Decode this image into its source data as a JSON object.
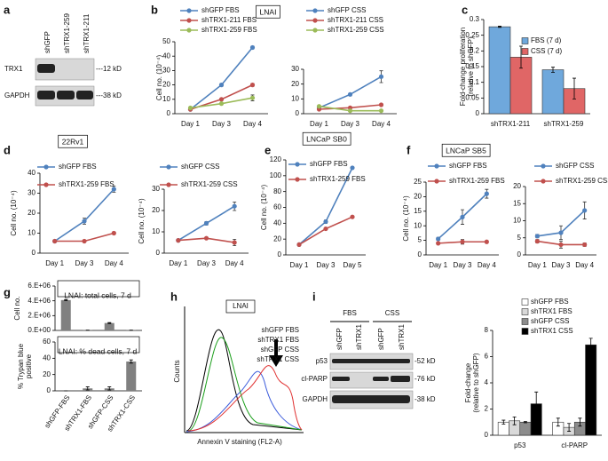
{
  "panel_labels": [
    "a",
    "b",
    "c",
    "d",
    "e",
    "f",
    "g",
    "h",
    "i"
  ],
  "blot_a": {
    "lanes": [
      "shGFP",
      "shTRX1-259",
      "shTRX1-211"
    ],
    "rows": [
      "TRX1",
      "GAPDH"
    ],
    "sizes": [
      "---12 kD",
      "---38 kD"
    ]
  },
  "blot_i": {
    "groups": [
      "FBS",
      "CSS"
    ],
    "lanes": [
      "shGFP",
      "shTRX1",
      "shGFP",
      "shTRX1"
    ],
    "rows": [
      "p53",
      "cl-PARP",
      "GAPDH"
    ],
    "sizes": [
      "-52 kD",
      "-76 kD",
      "-38 kD"
    ]
  },
  "flow_h": {
    "title": "LNAI",
    "ylabel": "Counts",
    "xlabel": "Annexin V staining (FL2-A)",
    "legend": [
      {
        "name": "shGFP FBS",
        "color": "#000000"
      },
      {
        "name": "shTRX1 FBS",
        "color": "#3b5bdb"
      },
      {
        "name": "shGFP CSS",
        "color": "#1a9e1a"
      },
      {
        "name": "shTRX1 CSS",
        "color": "#e03131"
      }
    ]
  },
  "chart_data": [
    {
      "type": "line",
      "title": "LNAI",
      "ylabel": "Cell no. (10⁻⁴)",
      "categories": [
        "Day 1",
        "Day 3",
        "Day 4"
      ],
      "ylim": [
        0,
        50
      ],
      "yticks": [
        0,
        10,
        20,
        30,
        40,
        50
      ],
      "series": [
        {
          "name": "shGFP FBS",
          "color": "#4f81bd",
          "values": [
            3,
            20,
            46
          ],
          "errors": [
            0.5,
            1,
            1
          ]
        },
        {
          "name": "shTRX1-211 FBS",
          "color": "#c0504d",
          "values": [
            3,
            10,
            20
          ],
          "errors": [
            0.5,
            0.8,
            1
          ]
        },
        {
          "name": "shTRX1-259 FBS",
          "color": "#9bbb59",
          "values": [
            4,
            7,
            11
          ],
          "errors": [
            0.5,
            0.8,
            2
          ]
        }
      ]
    },
    {
      "type": "line",
      "categories": [
        "Day 1",
        "Day 3",
        "Day 4"
      ],
      "ylim": [
        0,
        30
      ],
      "yticks": [
        0,
        10,
        20,
        30
      ],
      "series": [
        {
          "name": "shGFP CSS",
          "color": "#4f81bd",
          "values": [
            4,
            13,
            25
          ],
          "errors": [
            0.5,
            0.8,
            4
          ]
        },
        {
          "name": "shTRX1-211 CSS",
          "color": "#c0504d",
          "values": [
            3,
            4,
            6
          ],
          "errors": [
            0.3,
            0.5,
            0.5
          ]
        },
        {
          "name": "shTRX1-259 CSS",
          "color": "#9bbb59",
          "values": [
            5,
            2,
            2
          ],
          "errors": [
            0.3,
            0.3,
            0.3
          ]
        }
      ]
    },
    {
      "type": "bar",
      "ylabel": [
        "Fold-change proliferation",
        "(relative to shGFP)"
      ],
      "categories": [
        "shTRX1-211",
        "shTRX1-259"
      ],
      "ylim": [
        0,
        0.3
      ],
      "yticks": [
        0,
        0.05,
        0.1,
        0.15,
        0.2,
        0.25,
        0.3
      ],
      "series": [
        {
          "name": "FBS (7 d)",
          "color": "#6fa8dc",
          "values": [
            0.277,
            0.14
          ],
          "errors": [
            0.002,
            0.008
          ]
        },
        {
          "name": "CSS (7 d)",
          "color": "#e06666",
          "values": [
            0.18,
            0.08
          ],
          "errors": [
            0.035,
            0.033
          ]
        }
      ]
    },
    {
      "type": "line",
      "title": "22Rv1",
      "ylabel": "Cell no. (10⁻⁴)",
      "categories": [
        "Day 1",
        "Day 3",
        "Day 4"
      ],
      "ylim": [
        0,
        40
      ],
      "yticks": [
        0,
        10,
        20,
        30,
        40
      ],
      "series": [
        {
          "name": "shGFP FBS",
          "color": "#4f81bd",
          "values": [
            6,
            16,
            32
          ],
          "errors": [
            0.5,
            1.5,
            1.5
          ]
        },
        {
          "name": "shTRX1-259 FBS",
          "color": "#c0504d",
          "values": [
            6,
            6,
            10
          ],
          "errors": [
            0.3,
            0.3,
            0.5
          ]
        }
      ]
    },
    {
      "type": "line",
      "ylabel": "Cell no. (10⁻⁴)",
      "categories": [
        "Day 1",
        "Day 3",
        "Day 4"
      ],
      "ylim": [
        0,
        30
      ],
      "yticks": [
        0,
        10,
        20,
        30
      ],
      "series": [
        {
          "name": "shGFP CSS",
          "color": "#4f81bd",
          "values": [
            6,
            14,
            22
          ],
          "errors": [
            0.5,
            0.8,
            2
          ]
        },
        {
          "name": "shTRX1-259  CSS",
          "color": "#c0504d",
          "values": [
            6,
            7,
            5
          ],
          "errors": [
            0.5,
            0.5,
            1.5
          ]
        }
      ]
    },
    {
      "type": "line",
      "title": "LNCaP SB0",
      "ylabel": "Cell no. (10⁻⁴)",
      "categories": [
        "Day 1",
        "Day 3",
        "Day 5"
      ],
      "ylim": [
        0,
        120
      ],
      "yticks": [
        0,
        20,
        40,
        60,
        80,
        100,
        120
      ],
      "series": [
        {
          "name": "shGFP FBS",
          "color": "#4f81bd",
          "values": [
            13,
            42,
            110
          ],
          "errors": [
            1,
            2,
            1
          ]
        },
        {
          "name": "shTRX1-259 FBS",
          "color": "#c0504d",
          "values": [
            13,
            33,
            48
          ],
          "errors": [
            1,
            1,
            1
          ]
        }
      ]
    },
    {
      "type": "line",
      "title": "LNCaP SB5",
      "ylabel": "Cell no. (10⁻⁴)",
      "categories": [
        "Day 1",
        "Day 3",
        "Day 4"
      ],
      "ylim": [
        0,
        25
      ],
      "yticks": [
        0,
        5,
        10,
        15,
        20,
        25
      ],
      "series": [
        {
          "name": "shGFP FBS",
          "color": "#4f81bd",
          "values": [
            5.5,
            13,
            21
          ],
          "errors": [
            0.5,
            2.5,
            1.5
          ]
        },
        {
          "name": "shTRX1-259 FBS",
          "color": "#c0504d",
          "values": [
            4,
            4.5,
            4.5
          ],
          "errors": [
            0.3,
            0.8,
            0.3
          ]
        }
      ]
    },
    {
      "type": "line",
      "categories": [
        "Day 1",
        "Day 3",
        "Day 4"
      ],
      "ylim": [
        0,
        20
      ],
      "yticks": [
        0,
        5,
        10,
        15,
        20
      ],
      "series": [
        {
          "name": "shGFP CSS",
          "color": "#4f81bd",
          "values": [
            5.5,
            6.5,
            13
          ],
          "errors": [
            0.5,
            2,
            2.5
          ]
        },
        {
          "name": "shTRX1-259 CSS",
          "color": "#c0504d",
          "values": [
            4,
            3,
            3
          ],
          "errors": [
            0.5,
            1,
            0.5
          ]
        }
      ]
    },
    {
      "type": "bar",
      "title": "LNAI: total cells, 7 d",
      "ylabel": "Cell no.",
      "ylim": [
        0,
        6000000
      ],
      "yticks": [
        {
          "value": 0,
          "label": "0.E+00"
        },
        {
          "value": 2000000,
          "label": "2.E+06"
        },
        {
          "value": 4000000,
          "label": "4.E+06"
        },
        {
          "value": 6000000,
          "label": "6.E+06"
        }
      ],
      "series": [
        {
          "color": "#808080",
          "values": [
            4100000,
            30000,
            1000000,
            30000
          ],
          "errors": [
            60000,
            10000,
            60000,
            10000
          ]
        }
      ]
    },
    {
      "type": "bar",
      "title": "LNAI: % dead cells, 7 d",
      "ylabel": [
        "% Trypan blue",
        "positive"
      ],
      "categories": [
        "shGFP-FBS",
        "shTRX1-FBS",
        "shGFP-CSS",
        "shTRX1-CSS"
      ],
      "ylim": [
        0,
        60
      ],
      "yticks": [
        0,
        20,
        40,
        60
      ],
      "series": [
        {
          "color": "#808080",
          "values": [
            0,
            3,
            3,
            36
          ],
          "errors": [
            0,
            2,
            2,
            2
          ]
        }
      ]
    },
    {
      "type": "bar",
      "ylabel": [
        "Fold-change",
        "(relative to shGFP)"
      ],
      "categories": [
        "p53",
        "cl-PARP"
      ],
      "ylim": [
        0,
        8
      ],
      "yticks": [
        0,
        2,
        4,
        6,
        8
      ],
      "series": [
        {
          "name": "shGFP FBS",
          "color": "#ffffff",
          "values": [
            1,
            1
          ],
          "errors": [
            0.15,
            0.3
          ]
        },
        {
          "name": "shTRX1 FBS",
          "color": "#d9d9d9",
          "values": [
            1.1,
            0.6
          ],
          "errors": [
            0.3,
            0.3
          ]
        },
        {
          "name": "shGFP CSS",
          "color": "#8c8c8c",
          "values": [
            1,
            1
          ],
          "errors": [
            0.05,
            0.3
          ]
        },
        {
          "name": "shTRX1 CSS",
          "color": "#000000",
          "values": [
            2.4,
            6.9
          ],
          "errors": [
            0.9,
            0.5
          ]
        }
      ]
    }
  ]
}
